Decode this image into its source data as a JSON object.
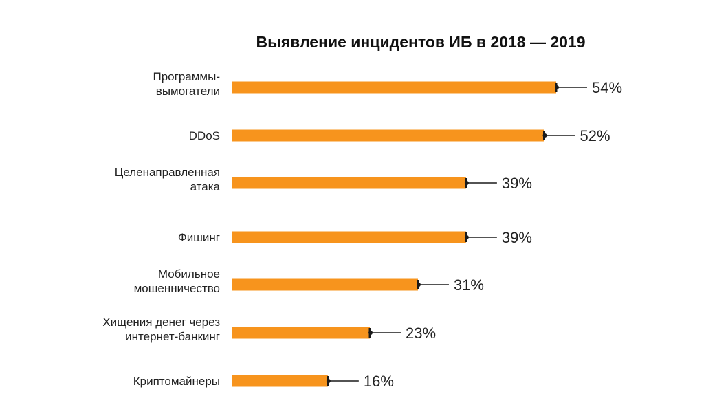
{
  "chart_data": {
    "type": "bar",
    "orientation": "horizontal",
    "title": "Выявление инцидентов ИБ в 2018 — 2019",
    "categories": [
      [
        "Программы-",
        "вымогатели"
      ],
      [
        "DDoS"
      ],
      [
        "Целенаправленная",
        "атака"
      ],
      [
        "Фишинг"
      ],
      [
        "Мобильное",
        "мошенничество"
      ],
      [
        "Хищения денег через",
        "интернет-банкинг"
      ],
      [
        "Криптомайнеры"
      ]
    ],
    "values": [
      54,
      52,
      39,
      39,
      31,
      23,
      16
    ],
    "value_labels": [
      "54%",
      "52%",
      "39%",
      "39%",
      "31%",
      "23%",
      "16%"
    ],
    "unit": "%",
    "xlim": [
      0,
      100
    ],
    "grid": false,
    "bar_color": "#f7941d",
    "leader_color": "#1a1a1a"
  }
}
